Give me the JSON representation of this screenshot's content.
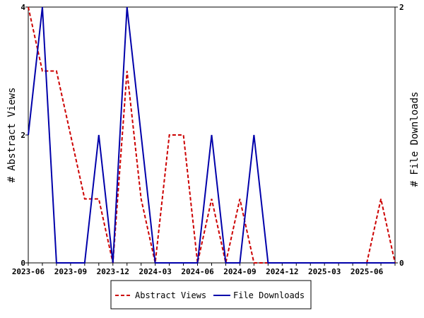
{
  "chart_data": {
    "type": "line",
    "x": [
      "2023-06",
      "2023-07",
      "2023-08",
      "2023-09",
      "2023-10",
      "2023-11",
      "2023-12",
      "2024-01",
      "2024-02",
      "2024-03",
      "2024-04",
      "2024-05",
      "2024-06",
      "2024-07",
      "2024-08",
      "2024-09",
      "2024-10",
      "2024-11",
      "2024-12",
      "2025-01",
      "2025-02",
      "2025-03",
      "2025-04",
      "2025-05",
      "2025-06",
      "2025-07",
      "2025-08"
    ],
    "x_tick_labels": [
      "2023-06",
      "2023-09",
      "2023-12",
      "2024-03",
      "2024-06",
      "2024-09",
      "2024-12",
      "2025-03",
      "2025-06"
    ],
    "series": [
      {
        "name": "Abstract Views",
        "axis": "left",
        "color": "#cc0000",
        "style": "dashed",
        "values": [
          4,
          3,
          3,
          2,
          1,
          1,
          0,
          3,
          1,
          0,
          2,
          2,
          0,
          1,
          0,
          1,
          0,
          0,
          0,
          0,
          0,
          0,
          0,
          0,
          0,
          1,
          0
        ]
      },
      {
        "name": "File Downloads",
        "axis": "right",
        "color": "#0000aa",
        "style": "solid",
        "values": [
          1,
          2,
          0,
          0,
          0,
          1,
          0,
          2,
          1,
          0,
          0,
          0,
          0,
          1,
          0,
          0,
          1,
          0,
          0,
          0,
          0,
          0,
          0,
          0,
          0,
          0,
          0
        ]
      }
    ],
    "ylabel": "# Abstract Views",
    "y2label": "# File Downloads",
    "ylim": [
      0,
      4
    ],
    "y2lim": [
      0,
      2
    ],
    "yticks": [
      "0",
      "2",
      "4"
    ],
    "y2ticks": [
      "0",
      "2"
    ],
    "legend_position": "bottom",
    "grid": false
  }
}
